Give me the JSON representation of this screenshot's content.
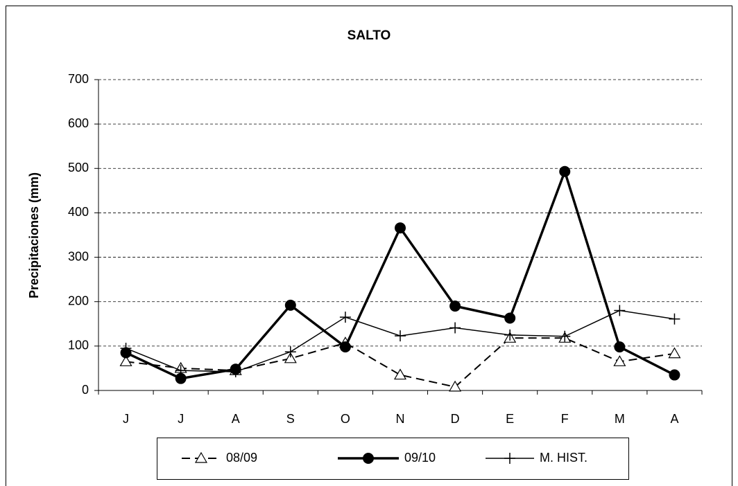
{
  "chart_data": {
    "type": "line",
    "title": "SALTO",
    "y_label": "Precipitaciones (mm)",
    "categories": [
      "J",
      "J",
      "A",
      "S",
      "O",
      "N",
      "D",
      "E",
      "F",
      "M",
      "A"
    ],
    "series": [
      {
        "name": "08/09",
        "color": "#000000",
        "marker": "triangle",
        "dash": true,
        "line_width": 2,
        "values": [
          65,
          50,
          45,
          72,
          107,
          35,
          8,
          118,
          118,
          65,
          83
        ]
      },
      {
        "name": "09/10",
        "color": "#000000",
        "marker": "circle",
        "dash": false,
        "line_width": 3.5,
        "values": [
          85,
          27,
          48,
          192,
          98,
          366,
          190,
          163,
          493,
          98,
          35
        ]
      },
      {
        "name": "M. HIST.",
        "color": "#000000",
        "marker": "plus",
        "dash": false,
        "line_width": 1.5,
        "values": [
          95,
          45,
          42,
          87,
          165,
          123,
          141,
          125,
          122,
          180,
          161
        ]
      }
    ],
    "ylim": [
      0,
      700
    ],
    "yticks": [
      0,
      100,
      200,
      300,
      400,
      500,
      600,
      700
    ],
    "grid": true,
    "legend": "bottom"
  }
}
